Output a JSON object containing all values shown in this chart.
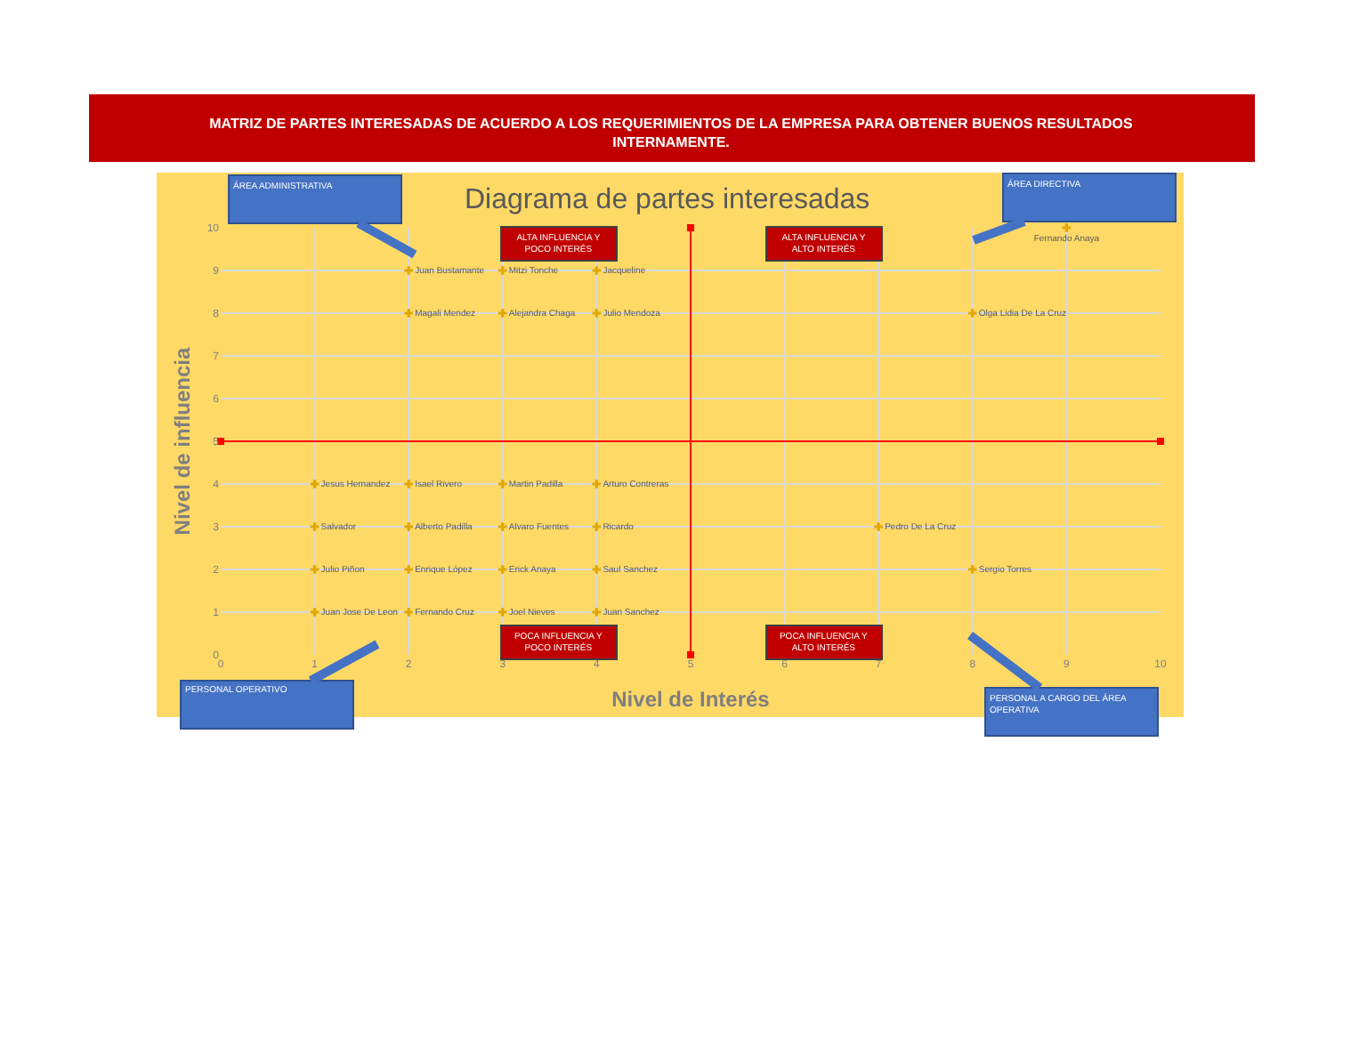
{
  "chart_data": {
    "type": "scatter",
    "title": "MATRIZ DE PARTES INTERESADAS DE ACUERDO A LOS REQUERIMIENTOS DE LA EMPRESA PARA OBTENER BUENOS RESULTADOS INTERNAMENTE.",
    "subtitle": "Diagrama de partes interesadas",
    "xlabel": "Nivel de Interés",
    "ylabel": "Nivel de influencia",
    "xlim": [
      0,
      10
    ],
    "ylim": [
      0,
      10
    ],
    "xticks": [
      0,
      1,
      2,
      3,
      4,
      5,
      6,
      7,
      8,
      9,
      10
    ],
    "yticks": [
      0,
      1,
      2,
      3,
      4,
      5,
      6,
      7,
      8,
      9,
      10
    ],
    "grid": true,
    "marker": "cross",
    "annotations": [
      "ALTA INFLUENCIA Y POCO INTERÉS",
      "ALTA INFLUENCIA Y ALTO INTERÉS",
      "POCA INFLUENCIA Y POCO INTERÉS",
      "POCA INFLUENCIA Y ALTO INTERÉS",
      "ÁREA ADMINISTRATIVA",
      "ÁREA DIRECTIVA",
      "PERSONAL OPERATIVO",
      "PERSONAL A CARGO DEL ÁREA OPERATIVA"
    ],
    "series": [
      {
        "type": "line",
        "marker": "square",
        "color": "#ff0000",
        "x": [
          5,
          5
        ],
        "values": [
          0,
          10
        ]
      },
      {
        "type": "line",
        "marker": "square",
        "color": "#ff0000",
        "x": [
          0,
          10
        ],
        "values": [
          5,
          5
        ]
      },
      {
        "name": "Juan Bustamante",
        "color": "#e0a800",
        "x": [
          2
        ],
        "values": [
          9
        ]
      },
      {
        "name": "Mitzi Tonche",
        "color": "#e0a800",
        "x": [
          3
        ],
        "values": [
          9
        ]
      },
      {
        "name": "Jacqueline",
        "color": "#e0a800",
        "x": [
          4
        ],
        "values": [
          9
        ]
      },
      {
        "name": "Fernando Anaya",
        "color": "#e0a800",
        "x": [
          9
        ],
        "values": [
          10
        ]
      },
      {
        "name": "Magali Mendez",
        "color": "#e0a800",
        "x": [
          2
        ],
        "values": [
          8
        ]
      },
      {
        "name": "Alejandra Chaga",
        "color": "#e0a800",
        "x": [
          3
        ],
        "values": [
          8
        ]
      },
      {
        "name": "Julio Mendoza",
        "color": "#e0a800",
        "x": [
          4
        ],
        "values": [
          8
        ]
      },
      {
        "name": "Olga Lidia De La Cruz",
        "color": "#e0a800",
        "x": [
          8
        ],
        "values": [
          8
        ]
      },
      {
        "name": "Jesus Hernandez",
        "color": "#e0a800",
        "x": [
          1
        ],
        "values": [
          4
        ]
      },
      {
        "name": "Isael Rivero",
        "color": "#e0a800",
        "x": [
          2
        ],
        "values": [
          4
        ]
      },
      {
        "name": "Martin Padilla",
        "color": "#e0a800",
        "x": [
          3
        ],
        "values": [
          4
        ]
      },
      {
        "name": "Arturo Contreras",
        "color": "#e0a800",
        "x": [
          4
        ],
        "values": [
          4
        ]
      },
      {
        "name": "Salvador",
        "color": "#e0a800",
        "x": [
          1
        ],
        "values": [
          3
        ]
      },
      {
        "name": "Alberto Padilla",
        "color": "#e0a800",
        "x": [
          2
        ],
        "values": [
          3
        ]
      },
      {
        "name": "Alvaro Fuentes",
        "color": "#e0a800",
        "x": [
          3
        ],
        "values": [
          3
        ]
      },
      {
        "name": "Ricardo",
        "color": "#e0a800",
        "x": [
          4
        ],
        "values": [
          3
        ]
      },
      {
        "name": "Pedro De La Cruz",
        "color": "#e0a800",
        "x": [
          7
        ],
        "values": [
          3
        ]
      },
      {
        "name": "Julio Piñon",
        "color": "#e0a800",
        "x": [
          1
        ],
        "values": [
          2
        ]
      },
      {
        "name": "Enrique López",
        "color": "#e0a800",
        "x": [
          2
        ],
        "values": [
          2
        ]
      },
      {
        "name": "Erick Anaya",
        "color": "#e0a800",
        "x": [
          3
        ],
        "values": [
          2
        ]
      },
      {
        "name": "Saul Sanchez",
        "color": "#e0a800",
        "x": [
          4
        ],
        "values": [
          2
        ]
      },
      {
        "name": "Sergio Torres",
        "color": "#e0a800",
        "x": [
          8
        ],
        "values": [
          2
        ]
      },
      {
        "name": "Juan Jose De Leon",
        "color": "#e0a800",
        "x": [
          1
        ],
        "values": [
          1
        ]
      },
      {
        "name": "Fernando Cruz",
        "color": "#e0a800",
        "x": [
          2
        ],
        "values": [
          1
        ]
      },
      {
        "name": "Joel Nieves",
        "color": "#e0a800",
        "x": [
          3
        ],
        "values": [
          1
        ]
      },
      {
        "name": "Juan Sanchez",
        "color": "#e0a800",
        "x": [
          4
        ],
        "values": [
          1
        ]
      }
    ]
  }
}
